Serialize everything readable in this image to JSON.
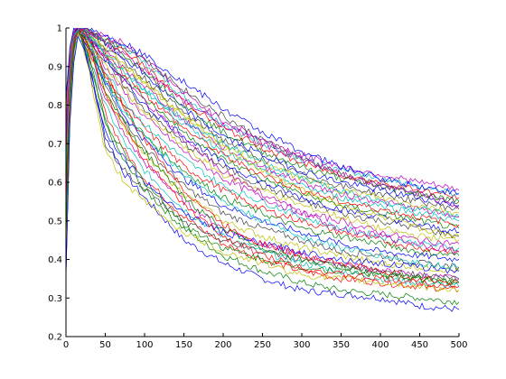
{
  "chart_data": {
    "type": "line",
    "title": "",
    "xlabel": "",
    "ylabel": "",
    "xlim": [
      0,
      500
    ],
    "ylim": [
      0.2,
      1.0
    ],
    "grid": false,
    "legend": "none",
    "x_ticks": [
      0,
      50,
      100,
      150,
      200,
      250,
      300,
      350,
      400,
      450,
      500
    ],
    "y_ticks": [
      0.2,
      0.3,
      0.4,
      0.5,
      0.6,
      0.7,
      0.8,
      0.9,
      1.0
    ],
    "x_tick_labels": [
      "0",
      "50",
      "100",
      "150",
      "200",
      "250",
      "300",
      "350",
      "400",
      "450",
      "500"
    ],
    "y_tick_labels": [
      "0.2",
      "0.3",
      "0.4",
      "0.5",
      "0.6",
      "0.7",
      "0.8",
      "0.9",
      "1"
    ],
    "colors": [
      "#0000ff",
      "#008000",
      "#ff0000",
      "#00bfbf",
      "#bf00bf",
      "#bfbf00",
      "#404040"
    ],
    "x": [
      0,
      5,
      10,
      15,
      20,
      30,
      50,
      75,
      100,
      150,
      200,
      250,
      300,
      350,
      400,
      450,
      500
    ],
    "series": [
      {
        "values": [
          0.35,
          0.8,
          0.95,
          1.0,
          0.98,
          0.9,
          0.72,
          0.62,
          0.56,
          0.45,
          0.39,
          0.35,
          0.32,
          0.31,
          0.3,
          0.28,
          0.27
        ]
      },
      {
        "values": [
          0.4,
          0.78,
          0.93,
          0.99,
          0.97,
          0.91,
          0.75,
          0.65,
          0.58,
          0.48,
          0.41,
          0.37,
          0.34,
          0.32,
          0.31,
          0.3,
          0.29
        ]
      },
      {
        "values": [
          0.45,
          0.82,
          0.96,
          1.0,
          0.99,
          0.93,
          0.78,
          0.68,
          0.61,
          0.51,
          0.44,
          0.4,
          0.37,
          0.35,
          0.34,
          0.33,
          0.32
        ]
      },
      {
        "values": [
          0.38,
          0.76,
          0.92,
          0.98,
          0.96,
          0.92,
          0.8,
          0.7,
          0.63,
          0.53,
          0.46,
          0.42,
          0.39,
          0.37,
          0.35,
          0.34,
          0.33
        ]
      },
      {
        "values": [
          0.5,
          0.84,
          0.97,
          1.0,
          0.99,
          0.94,
          0.82,
          0.72,
          0.65,
          0.55,
          0.48,
          0.44,
          0.41,
          0.39,
          0.37,
          0.36,
          0.35
        ]
      },
      {
        "values": [
          0.42,
          0.8,
          0.94,
          0.99,
          0.98,
          0.94,
          0.83,
          0.74,
          0.67,
          0.57,
          0.5,
          0.46,
          0.43,
          0.41,
          0.39,
          0.38,
          0.37
        ]
      },
      {
        "values": [
          0.55,
          0.85,
          0.97,
          1.0,
          0.99,
          0.95,
          0.85,
          0.76,
          0.69,
          0.59,
          0.52,
          0.48,
          0.45,
          0.42,
          0.41,
          0.39,
          0.38
        ]
      },
      {
        "values": [
          0.48,
          0.82,
          0.95,
          0.99,
          0.98,
          0.95,
          0.86,
          0.77,
          0.71,
          0.61,
          0.54,
          0.5,
          0.47,
          0.44,
          0.42,
          0.41,
          0.4
        ]
      },
      {
        "values": [
          0.6,
          0.87,
          0.98,
          1.0,
          0.99,
          0.96,
          0.87,
          0.79,
          0.72,
          0.63,
          0.56,
          0.52,
          0.48,
          0.46,
          0.44,
          0.42,
          0.41
        ]
      },
      {
        "values": [
          0.44,
          0.81,
          0.95,
          0.99,
          0.98,
          0.95,
          0.88,
          0.8,
          0.74,
          0.64,
          0.58,
          0.53,
          0.5,
          0.47,
          0.45,
          0.43,
          0.42
        ]
      },
      {
        "values": [
          0.52,
          0.84,
          0.96,
          1.0,
          0.99,
          0.96,
          0.89,
          0.81,
          0.75,
          0.66,
          0.59,
          0.55,
          0.51,
          0.48,
          0.46,
          0.44,
          0.43
        ]
      },
      {
        "values": [
          0.58,
          0.86,
          0.97,
          1.0,
          0.99,
          0.97,
          0.9,
          0.83,
          0.77,
          0.68,
          0.61,
          0.56,
          0.52,
          0.5,
          0.47,
          0.45,
          0.44
        ]
      },
      {
        "values": [
          0.46,
          0.82,
          0.95,
          0.99,
          0.98,
          0.96,
          0.9,
          0.84,
          0.78,
          0.69,
          0.62,
          0.58,
          0.54,
          0.51,
          0.48,
          0.46,
          0.45
        ]
      },
      {
        "values": [
          0.62,
          0.88,
          0.98,
          1.0,
          0.99,
          0.97,
          0.91,
          0.85,
          0.79,
          0.7,
          0.64,
          0.59,
          0.55,
          0.52,
          0.5,
          0.48,
          0.46
        ]
      },
      {
        "values": [
          0.54,
          0.85,
          0.97,
          1.0,
          0.99,
          0.97,
          0.92,
          0.86,
          0.8,
          0.72,
          0.65,
          0.6,
          0.56,
          0.53,
          0.51,
          0.49,
          0.47
        ]
      },
      {
        "values": [
          0.66,
          0.89,
          0.98,
          1.0,
          1.0,
          0.98,
          0.93,
          0.87,
          0.82,
          0.73,
          0.66,
          0.61,
          0.57,
          0.54,
          0.52,
          0.5,
          0.48
        ]
      },
      {
        "values": [
          0.5,
          0.83,
          0.96,
          1.0,
          0.99,
          0.97,
          0.93,
          0.88,
          0.83,
          0.74,
          0.67,
          0.62,
          0.58,
          0.55,
          0.53,
          0.51,
          0.49
        ]
      },
      {
        "values": [
          0.7,
          0.9,
          0.99,
          1.0,
          1.0,
          0.98,
          0.94,
          0.89,
          0.84,
          0.75,
          0.68,
          0.63,
          0.59,
          0.56,
          0.54,
          0.52,
          0.5
        ]
      },
      {
        "values": [
          0.56,
          0.86,
          0.97,
          1.0,
          0.99,
          0.98,
          0.94,
          0.89,
          0.85,
          0.76,
          0.69,
          0.64,
          0.6,
          0.57,
          0.55,
          0.53,
          0.51
        ]
      },
      {
        "values": [
          0.64,
          0.88,
          0.98,
          1.0,
          1.0,
          0.98,
          0.95,
          0.9,
          0.86,
          0.77,
          0.7,
          0.65,
          0.61,
          0.58,
          0.56,
          0.54,
          0.52
        ]
      },
      {
        "values": [
          0.72,
          0.91,
          0.99,
          1.0,
          1.0,
          0.99,
          0.95,
          0.91,
          0.87,
          0.78,
          0.71,
          0.66,
          0.62,
          0.59,
          0.57,
          0.55,
          0.53
        ]
      },
      {
        "values": [
          0.6,
          0.87,
          0.98,
          1.0,
          1.0,
          0.99,
          0.96,
          0.92,
          0.88,
          0.79,
          0.72,
          0.67,
          0.63,
          0.6,
          0.58,
          0.56,
          0.54
        ]
      },
      {
        "values": [
          0.68,
          0.9,
          0.99,
          1.0,
          1.0,
          0.99,
          0.96,
          0.93,
          0.89,
          0.8,
          0.73,
          0.68,
          0.64,
          0.61,
          0.59,
          0.57,
          0.55
        ]
      },
      {
        "values": [
          0.74,
          0.92,
          0.99,
          1.0,
          1.0,
          0.99,
          0.97,
          0.94,
          0.9,
          0.81,
          0.74,
          0.69,
          0.65,
          0.62,
          0.6,
          0.58,
          0.56
        ]
      },
      {
        "values": [
          0.62,
          0.88,
          0.98,
          1.0,
          1.0,
          0.99,
          0.97,
          0.95,
          0.91,
          0.82,
          0.75,
          0.7,
          0.66,
          0.63,
          0.61,
          0.59,
          0.57
        ]
      },
      {
        "values": [
          0.76,
          0.93,
          0.99,
          1.0,
          1.0,
          0.99,
          0.98,
          0.96,
          0.92,
          0.83,
          0.76,
          0.71,
          0.67,
          0.64,
          0.62,
          0.6,
          0.58
        ]
      },
      {
        "values": [
          0.42,
          0.78,
          0.93,
          0.99,
          0.97,
          0.88,
          0.68,
          0.6,
          0.55,
          0.47,
          0.42,
          0.39,
          0.36,
          0.35,
          0.34,
          0.33,
          0.32
        ]
      },
      {
        "values": [
          0.48,
          0.8,
          0.94,
          0.99,
          0.97,
          0.89,
          0.7,
          0.63,
          0.58,
          0.5,
          0.45,
          0.42,
          0.4,
          0.38,
          0.37,
          0.36,
          0.35
        ]
      },
      {
        "values": [
          0.36,
          0.75,
          0.91,
          0.98,
          0.96,
          0.9,
          0.73,
          0.66,
          0.6,
          0.52,
          0.47,
          0.44,
          0.42,
          0.4,
          0.39,
          0.38,
          0.37
        ]
      },
      {
        "values": [
          0.58,
          0.86,
          0.97,
          1.0,
          0.99,
          0.95,
          0.84,
          0.75,
          0.68,
          0.56,
          0.48,
          0.43,
          0.4,
          0.38,
          0.36,
          0.35,
          0.34
        ]
      },
      {
        "values": [
          0.66,
          0.89,
          0.98,
          1.0,
          1.0,
          0.97,
          0.88,
          0.79,
          0.71,
          0.58,
          0.49,
          0.44,
          0.41,
          0.39,
          0.37,
          0.35,
          0.34
        ]
      },
      {
        "values": [
          0.52,
          0.84,
          0.96,
          1.0,
          0.99,
          0.96,
          0.86,
          0.78,
          0.72,
          0.62,
          0.55,
          0.5,
          0.46,
          0.43,
          0.41,
          0.39,
          0.38
        ]
      },
      {
        "values": [
          0.7,
          0.91,
          0.99,
          1.0,
          1.0,
          0.98,
          0.92,
          0.86,
          0.81,
          0.71,
          0.63,
          0.57,
          0.52,
          0.48,
          0.46,
          0.44,
          0.42
        ]
      },
      {
        "values": [
          0.78,
          0.93,
          0.99,
          1.0,
          1.0,
          0.99,
          0.94,
          0.9,
          0.86,
          0.77,
          0.69,
          0.63,
          0.58,
          0.54,
          0.51,
          0.48,
          0.46
        ]
      },
      {
        "values": [
          0.8,
          0.94,
          1.0,
          1.0,
          1.0,
          0.99,
          0.97,
          0.95,
          0.92,
          0.84,
          0.77,
          0.71,
          0.66,
          0.62,
          0.59,
          0.57,
          0.55
        ]
      },
      {
        "values": [
          0.82,
          0.95,
          1.0,
          1.0,
          1.0,
          1.0,
          0.98,
          0.96,
          0.93,
          0.86,
          0.79,
          0.73,
          0.68,
          0.64,
          0.61,
          0.59,
          0.57
        ]
      },
      {
        "values": [
          0.46,
          0.81,
          0.95,
          0.99,
          0.98,
          0.92,
          0.76,
          0.67,
          0.6,
          0.49,
          0.43,
          0.4,
          0.38,
          0.37,
          0.36,
          0.35,
          0.34
        ]
      },
      {
        "values": [
          0.54,
          0.85,
          0.96,
          1.0,
          0.99,
          0.95,
          0.83,
          0.74,
          0.66,
          0.54,
          0.46,
          0.41,
          0.38,
          0.36,
          0.35,
          0.34,
          0.33
        ]
      },
      {
        "values": [
          0.64,
          0.88,
          0.98,
          1.0,
          1.0,
          0.98,
          0.93,
          0.88,
          0.84,
          0.76,
          0.7,
          0.65,
          0.61,
          0.58,
          0.55,
          0.53,
          0.51
        ]
      },
      {
        "values": [
          0.72,
          0.91,
          0.99,
          1.0,
          1.0,
          0.99,
          0.96,
          0.93,
          0.89,
          0.81,
          0.75,
          0.7,
          0.66,
          0.62,
          0.59,
          0.57,
          0.54
        ]
      }
    ]
  }
}
